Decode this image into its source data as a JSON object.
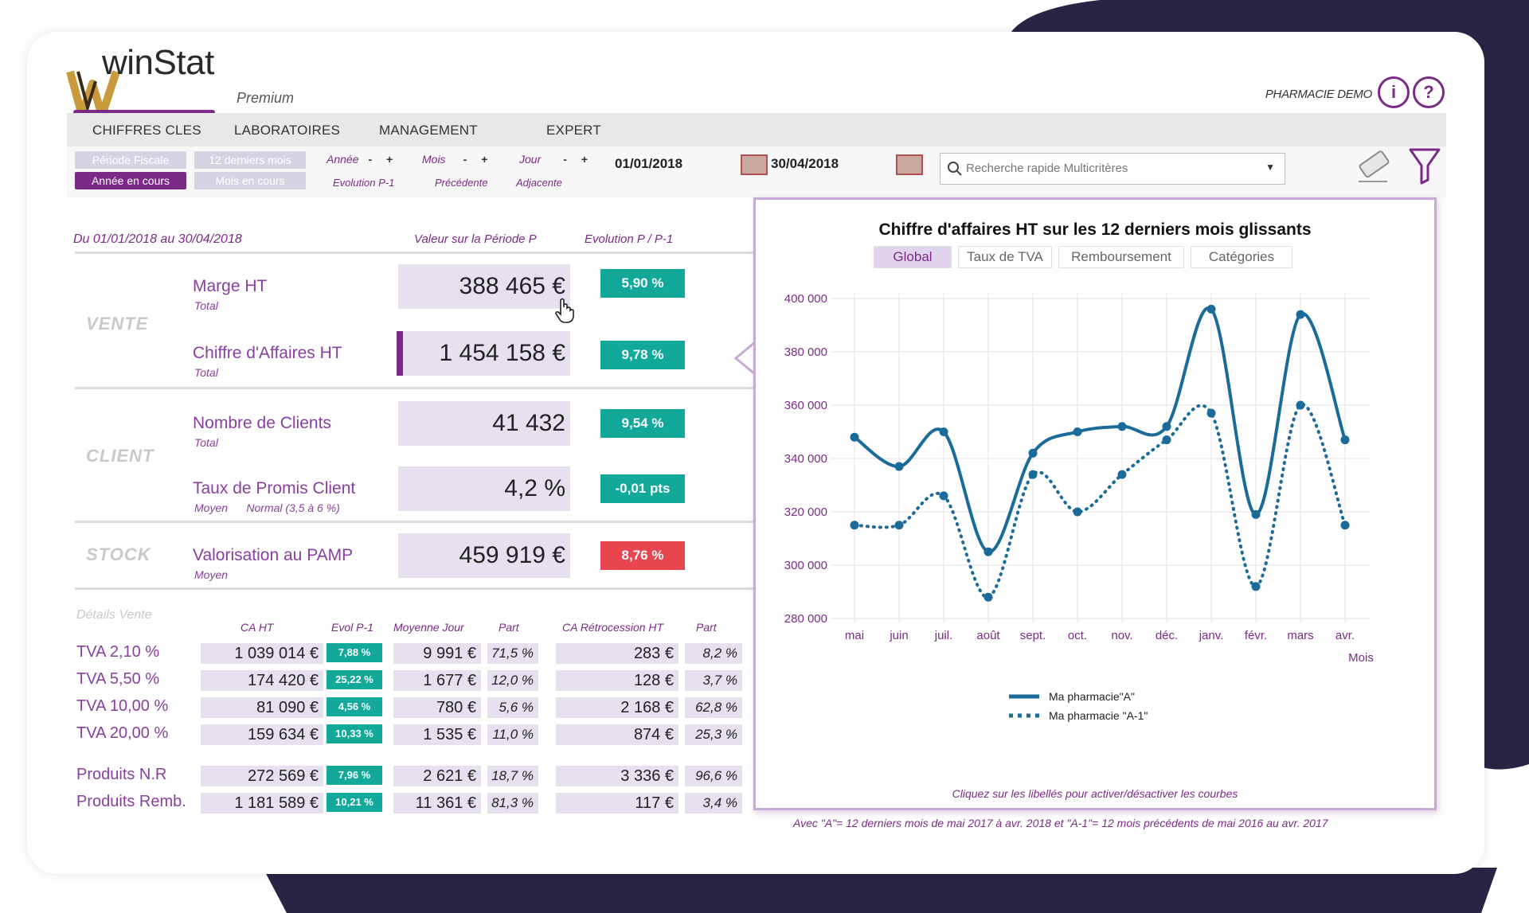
{
  "app": {
    "logo_name": "winStat",
    "logo_edition": "Premium",
    "pharmacy": "PHARMACIE DEMO",
    "info_icon": "info-icon",
    "help_icon": "help-icon"
  },
  "menu": [
    "CHIFFRES CLES",
    "LABORATOIRES",
    "MANAGEMENT",
    "EXPERT"
  ],
  "toolbar": {
    "period_buttons": [
      {
        "label": "Période Fiscale",
        "active": false
      },
      {
        "label": "12 derniers mois",
        "active": false
      },
      {
        "label": "Année en cours",
        "active": true
      },
      {
        "label": "Mois en cours",
        "active": false
      }
    ],
    "selectors": [
      "Année",
      "Mois",
      "Jour"
    ],
    "control_minus": "-",
    "control_plus": "+",
    "sub_labels": [
      "Evolution P-1",
      "Précédente",
      "Adjacente"
    ],
    "date_from": "01/01/2018",
    "date_to": "30/04/2018",
    "search_placeholder": "Recherche rapide Multicritères"
  },
  "kpi": {
    "period_label": "Du 01/01/2018 au 30/04/2018",
    "value_header": "Valeur sur la Période P",
    "evolution_header": "Evolution P / P-1",
    "categories": [
      "VENTE",
      "CLIENT",
      "STOCK"
    ],
    "rows": [
      {
        "label": "Marge HT",
        "sub": "Total",
        "value": "388 465 €",
        "evolution": "5,90 %",
        "status": "up"
      },
      {
        "label": "Chiffre d'Affaires HT",
        "sub": "Total",
        "value": "1 454 158 €",
        "evolution": "9,78 %",
        "status": "up",
        "selected": true
      },
      {
        "label": "Nombre de  Clients",
        "sub": "Total",
        "value": "41 432",
        "evolution": "9,54 %",
        "status": "up"
      },
      {
        "label": "Taux de Promis Client",
        "sub": "Moyen      Normal (3,5 à 6 %)",
        "value": "4,2 %",
        "evolution": "-0,01 pts",
        "status": "up"
      },
      {
        "label": "Valorisation au PAMP",
        "sub": "Moyen",
        "value": "459 919 €",
        "evolution": "8,76 %",
        "status": "down"
      }
    ]
  },
  "details": {
    "title": "Détails Vente",
    "headers": [
      "CA HT",
      "Evol P-1",
      "Moyenne Jour",
      "Part",
      "CA Rétrocession HT",
      "Part"
    ],
    "rows": [
      {
        "label": "TVA 2,10 %",
        "ca": "1 039 014 €",
        "evol": "7,88 %",
        "avg": "9 991 €",
        "part": "71,5 %",
        "retro": "283 €",
        "part2": "8,2 %"
      },
      {
        "label": "TVA 5,50 %",
        "ca": "174 420 €",
        "evol": "25,22 %",
        "avg": "1 677 €",
        "part": "12,0 %",
        "retro": "128 €",
        "part2": "3,7 %"
      },
      {
        "label": "TVA 10,00 %",
        "ca": "81 090 €",
        "evol": "4,56 %",
        "avg": "780 €",
        "part": "5,6 %",
        "retro": "2 168 €",
        "part2": "62,8 %"
      },
      {
        "label": "TVA 20,00 %",
        "ca": "159 634 €",
        "evol": "10,33 %",
        "avg": "1 535 €",
        "part": "11,0 %",
        "retro": "874 €",
        "part2": "25,3 %"
      },
      {
        "label": "Produits N.R",
        "ca": "272 569 €",
        "evol": "7,96 %",
        "avg": "2 621 €",
        "part": "18,7 %",
        "retro": "3 336 €",
        "part2": "96,6 %"
      },
      {
        "label": "Produits Remb.",
        "ca": "1 181 589 €",
        "evol": "10,21 %",
        "avg": "11 361 €",
        "part": "81,3 %",
        "retro": "117 €",
        "part2": "3,4 %"
      }
    ]
  },
  "chart_panel": {
    "tabs": [
      {
        "label": "Global",
        "active": true
      },
      {
        "label": "Taux de TVA",
        "active": false
      },
      {
        "label": "Remboursement",
        "active": false
      },
      {
        "label": "Catégories",
        "active": false
      }
    ],
    "note": "Cliquez sur les libellés pour activer/désactiver les courbes",
    "footnote": "Avec \"A\"= 12 derniers mois de mai 2017 à avr. 2018 et \"A-1\"= 12 mois précédents de mai 2016 au avr. 2017"
  },
  "colors": {
    "accent": "#7b2a88",
    "positive": "#12a89a",
    "negative": "#e8454f",
    "series": "#1a6a9a",
    "dark_blob": "#2b2344"
  },
  "chart_data": {
    "type": "line",
    "title": "Chiffre d'affaires HT sur les 12 derniers mois glissants",
    "xlabel": "Mois",
    "ylabel": "",
    "categories": [
      "mai",
      "juin",
      "juil.",
      "août",
      "sept.",
      "oct.",
      "nov.",
      "déc.",
      "janv.",
      "févr.",
      "mars",
      "avr."
    ],
    "y_ticks": [
      "280 000",
      "300 000",
      "320 000",
      "340 000",
      "360 000",
      "380 000",
      "400 000"
    ],
    "ylim": [
      280000,
      400000
    ],
    "grid": true,
    "legend_position": "bottom",
    "series": [
      {
        "name": "Ma pharmacie\"A\"",
        "style": "solid",
        "values": [
          348000,
          337000,
          350000,
          305000,
          342000,
          350000,
          352000,
          352000,
          396000,
          319000,
          394000,
          347000
        ]
      },
      {
        "name": "Ma pharmacie \"A-1\"",
        "style": "dotted",
        "values": [
          315000,
          315000,
          326000,
          288000,
          334000,
          320000,
          334000,
          347000,
          357000,
          292000,
          360000,
          315000
        ]
      }
    ]
  }
}
